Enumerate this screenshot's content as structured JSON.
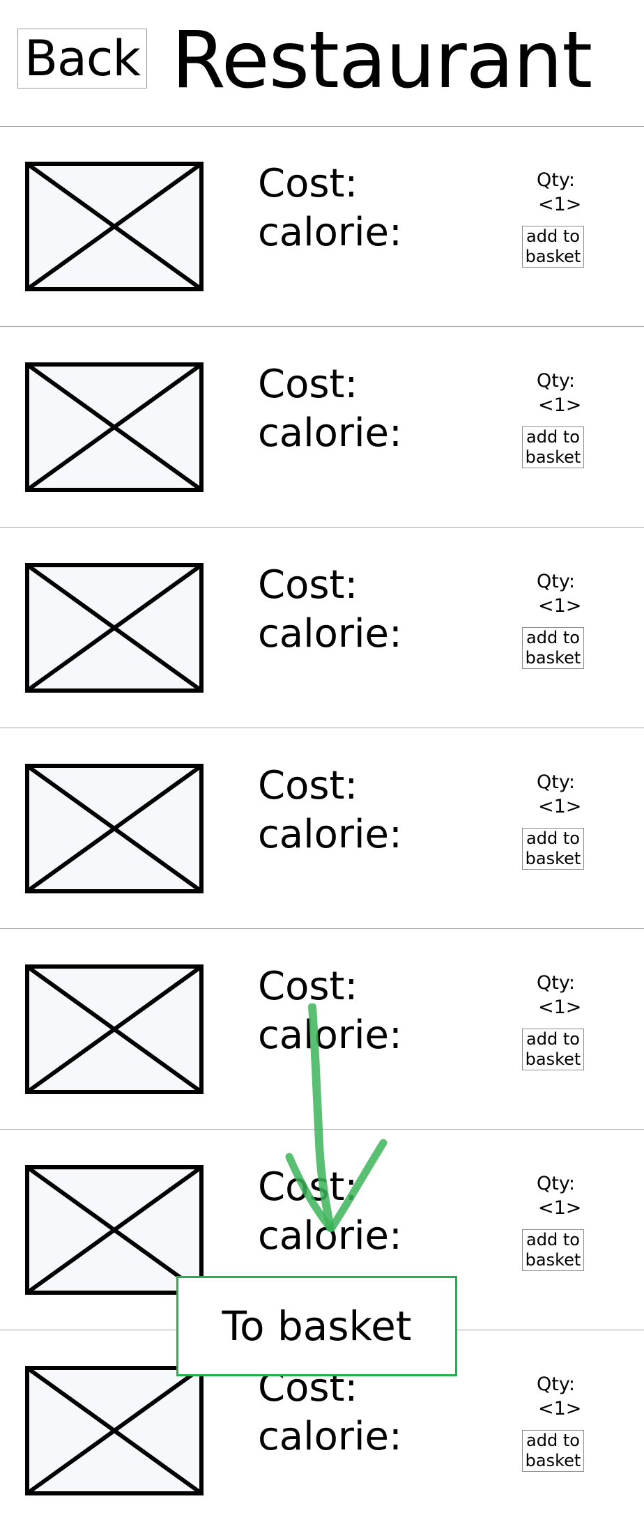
{
  "header": {
    "back_label": "Back",
    "title": "Restaurant"
  },
  "items": [
    {
      "cost_label": "Cost:",
      "calorie_label": "calorie:",
      "qty_label": "Qty:",
      "qty_value": "<1>",
      "add_label": "add to basket"
    },
    {
      "cost_label": "Cost:",
      "calorie_label": "calorie:",
      "qty_label": "Qty:",
      "qty_value": "<1>",
      "add_label": "add to basket"
    },
    {
      "cost_label": "Cost:",
      "calorie_label": "calorie:",
      "qty_label": "Qty:",
      "qty_value": "<1>",
      "add_label": "add to basket"
    },
    {
      "cost_label": "Cost:",
      "calorie_label": "calorie:",
      "qty_label": "Qty:",
      "qty_value": "<1>",
      "add_label": "add to basket"
    },
    {
      "cost_label": "Cost:",
      "calorie_label": "calorie:",
      "qty_label": "Qty:",
      "qty_value": "<1>",
      "add_label": "add to basket"
    },
    {
      "cost_label": "Cost:",
      "calorie_label": "calorie:",
      "qty_label": "Qty:",
      "qty_value": "<1>",
      "add_label": "add to basket"
    },
    {
      "cost_label": "Cost:",
      "calorie_label": "calorie:",
      "qty_label": "Qty:",
      "qty_value": "<1>",
      "add_label": "add to basket"
    }
  ],
  "to_basket_label": "To basket",
  "annotation": {
    "arrow_color": "#3cb45a"
  },
  "colors": {
    "to_basket_border": "#22b04a",
    "divider": "#a8a8a8"
  }
}
